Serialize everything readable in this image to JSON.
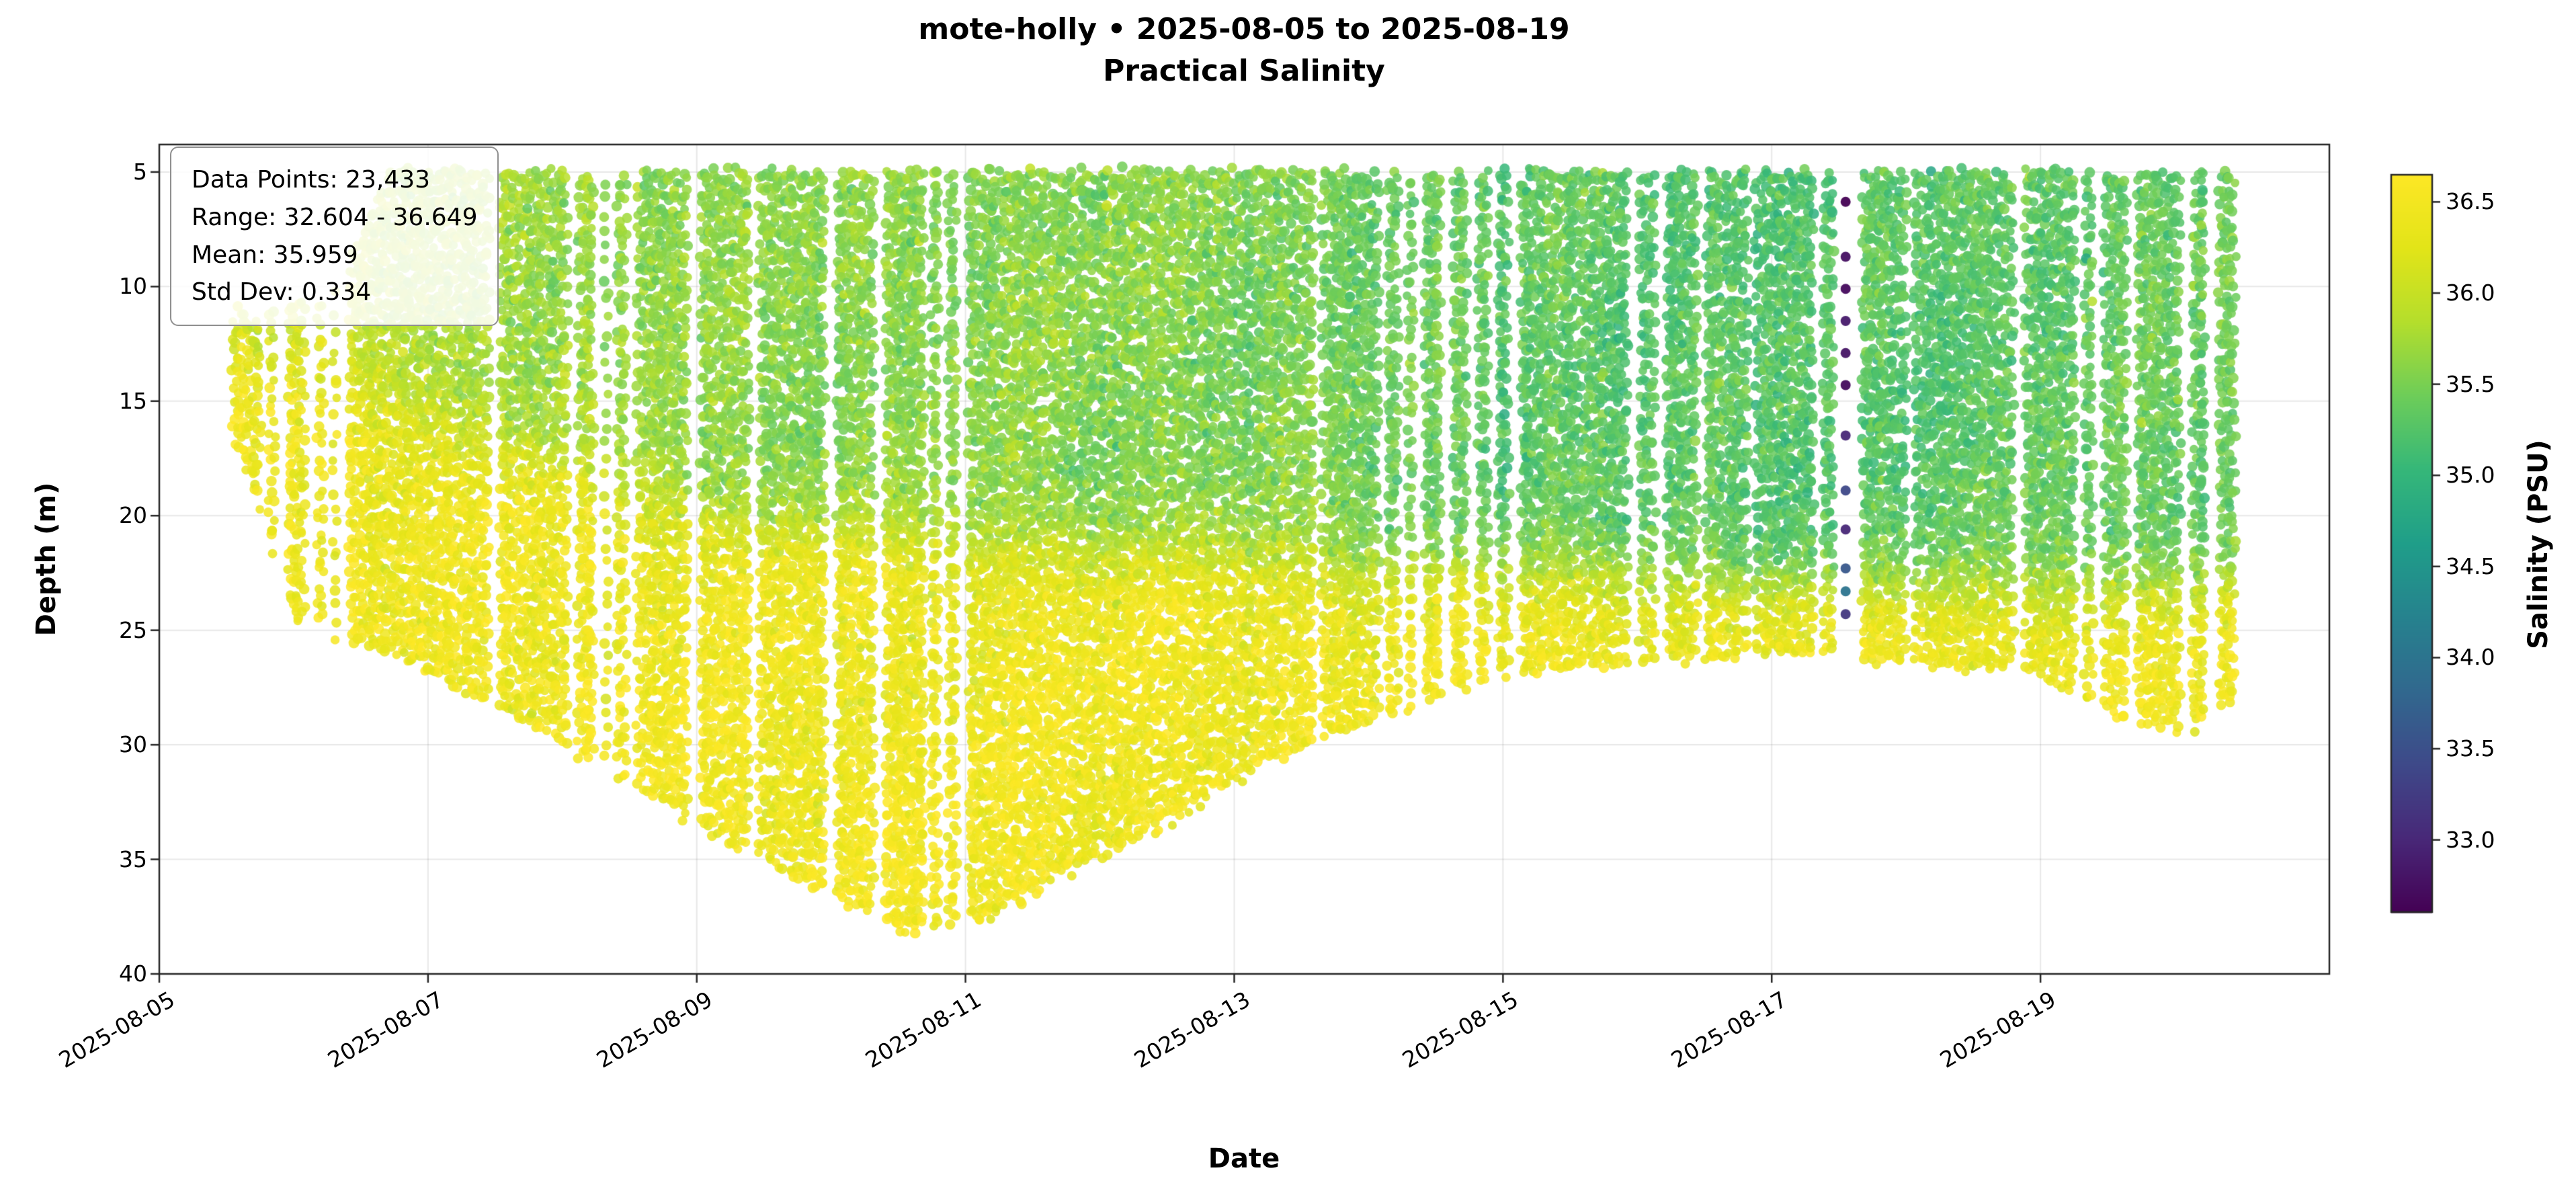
{
  "title": {
    "line1": "mote-holly • 2025-08-05 to 2025-08-19",
    "line2": "Practical Salinity"
  },
  "stats_box": {
    "line1": "Data Points: 23,433",
    "line2": "Range: 32.604 - 36.649",
    "line3": "Mean: 35.959",
    "line4": "Std Dev: 0.334"
  },
  "chart_data": {
    "type": "scatter",
    "title": "mote-holly • 2025-08-05 to 2025-08-19",
    "subtitle": "Practical Salinity",
    "xlabel": "Date",
    "ylabel": "Depth (m)",
    "colorbar_label": "Salinity (PSU)",
    "grid": true,
    "background": "#ffffff",
    "stats": {
      "n_points": 23433,
      "min": 32.604,
      "max": 36.649,
      "mean": 35.959,
      "std": 0.334
    },
    "x_start_date": "2025-08-05",
    "x_tick_labels": [
      "2025-08-05",
      "2025-08-07",
      "2025-08-09",
      "2025-08-11",
      "2025-08-13",
      "2025-08-15",
      "2025-08-17",
      "2025-08-19"
    ],
    "x_tick_days": [
      0,
      2,
      4,
      6,
      8,
      10,
      12,
      14
    ],
    "x_range_days": [
      0,
      16.15
    ],
    "y_ticks": [
      5,
      10,
      15,
      20,
      25,
      30,
      35,
      40
    ],
    "y_tick_labels": [
      "5",
      "10",
      "15",
      "20",
      "25",
      "30",
      "35",
      "40"
    ],
    "ylim": [
      40,
      3.8
    ],
    "colormap": {
      "name": "viridis",
      "vmin": 32.604,
      "vmax": 36.649,
      "ticks": [
        33.0,
        33.5,
        34.0,
        34.5,
        35.0,
        35.5,
        36.0,
        36.5
      ],
      "stops": [
        [
          0.0,
          "#440154"
        ],
        [
          0.1,
          "#482878"
        ],
        [
          0.2,
          "#3e4989"
        ],
        [
          0.3,
          "#31688e"
        ],
        [
          0.4,
          "#26828e"
        ],
        [
          0.5,
          "#1f9e89"
        ],
        [
          0.6,
          "#35b779"
        ],
        [
          0.7,
          "#6dcd59"
        ],
        [
          0.8,
          "#b4de2c"
        ],
        [
          0.9,
          "#e2e418"
        ],
        [
          1.0,
          "#fde725"
        ]
      ]
    },
    "colorbar_tick_labels": [
      "33.0",
      "33.5",
      "34.0",
      "34.5",
      "35.0",
      "35.5",
      "36.0",
      "36.5"
    ],
    "envelope_top": [
      [
        0.55,
        11.0
      ],
      [
        0.75,
        11.5
      ],
      [
        0.95,
        10.5
      ],
      [
        1.3,
        10.5
      ],
      [
        1.5,
        8.0
      ],
      [
        1.7,
        5.0
      ],
      [
        15.45,
        5.0
      ]
    ],
    "envelope_bottom": [
      [
        0.55,
        16.5
      ],
      [
        0.8,
        21.0
      ],
      [
        1.0,
        24.5
      ],
      [
        1.3,
        25.5
      ],
      [
        1.7,
        26.0
      ],
      [
        2.2,
        27.5
      ],
      [
        3.0,
        30.0
      ],
      [
        4.0,
        33.5
      ],
      [
        5.0,
        36.5
      ],
      [
        5.6,
        38.3
      ],
      [
        6.2,
        37.5
      ],
      [
        6.8,
        35.5
      ],
      [
        7.5,
        33.5
      ],
      [
        8.2,
        31.0
      ],
      [
        9.0,
        29.0
      ],
      [
        10.0,
        27.0
      ],
      [
        11.0,
        26.5
      ],
      [
        12.0,
        26.0
      ],
      [
        13.0,
        26.5
      ],
      [
        14.0,
        27.0
      ],
      [
        14.7,
        29.0
      ],
      [
        15.1,
        29.5
      ],
      [
        15.45,
        28.0
      ]
    ],
    "halocline_by_day": [
      [
        0.55,
        12.5
      ],
      [
        1.0,
        14.0
      ],
      [
        1.7,
        15.0
      ],
      [
        2.5,
        17.0
      ],
      [
        3.5,
        19.0
      ],
      [
        4.5,
        20.5
      ],
      [
        5.5,
        21.0
      ],
      [
        7.0,
        21.5
      ],
      [
        8.5,
        22.0
      ],
      [
        10.0,
        22.5
      ],
      [
        12.0,
        23.0
      ],
      [
        13.5,
        23.2
      ],
      [
        15.45,
        23.0
      ]
    ],
    "upper_salinity_by_day": [
      [
        0.55,
        36.05
      ],
      [
        1.2,
        35.95
      ],
      [
        2.0,
        35.8
      ],
      [
        3.0,
        35.7
      ],
      [
        4.5,
        35.6
      ],
      [
        6.0,
        35.6
      ],
      [
        7.5,
        35.55
      ],
      [
        9.0,
        35.45
      ],
      [
        10.0,
        35.35
      ],
      [
        11.0,
        35.3
      ],
      [
        12.5,
        35.25
      ],
      [
        13.5,
        35.3
      ],
      [
        14.5,
        35.35
      ],
      [
        15.45,
        35.45
      ]
    ],
    "deep_salinity": 36.42,
    "halocline_sharpness_m": 0.9,
    "noise_sd": 0.12,
    "gaps": [
      [
        1.22,
        1.3
      ],
      [
        12.45,
        12.67
      ],
      [
        14.25,
        14.32
      ]
    ],
    "outlier_cast": {
      "day": 12.55,
      "points": [
        [
          6.3,
          32.604
        ],
        [
          8.7,
          32.75
        ],
        [
          10.1,
          32.7
        ],
        [
          11.5,
          32.85
        ],
        [
          12.9,
          32.8
        ],
        [
          14.3,
          32.7
        ],
        [
          16.5,
          33.0
        ],
        [
          18.9,
          33.4
        ],
        [
          20.6,
          33.0
        ],
        [
          22.3,
          33.6
        ],
        [
          23.3,
          34.0
        ],
        [
          24.3,
          33.2
        ]
      ]
    },
    "generation": {
      "seed": 42,
      "t_start": 0.55,
      "t_end": 15.45,
      "dt_days": 0.02,
      "depth_step_m": 0.65,
      "gap_probability": 0.05
    }
  }
}
